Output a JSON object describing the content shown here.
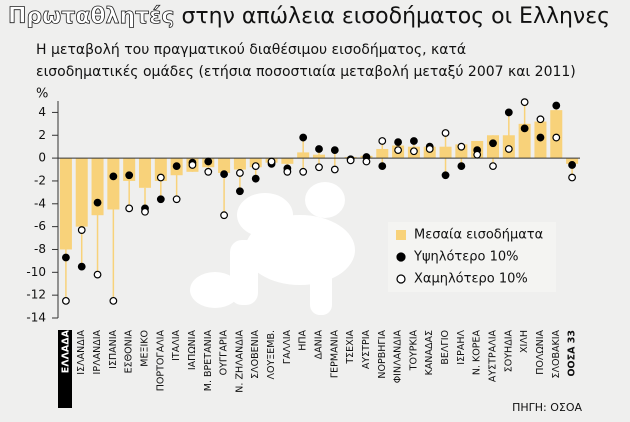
{
  "chart_data": {
    "type": "bar-dot",
    "title_highlight": "Πρωταθλητές",
    "title": "στην απώλεια εισοδήματος οι Ελληνες",
    "subtitle": [
      "Η μεταβολή του πραγματικού διαθέσιμου εισοδήματος, κατά",
      "εισοδηματικές ομάδες (ετήσια ποσοστιαία μεταβολή μεταξύ 2007 και 2011)"
    ],
    "y_unit": "%",
    "source": "ΠΗΓΗ: ΟΣΟΑ",
    "categories": [
      "ΕΛΛΑΔΑ",
      "ΙΣΛΑΝΔΙΑ",
      "ΙΡΛΑΝΔΙΑ",
      "ΙΣΠΑΝΙΑ",
      "ΕΣΘΟΝΙΑ",
      "ΜΕΞΙΚΟ",
      "ΠΟΡΤΟΓΑΛΙΑ",
      "ΙΤΑΛΙΑ",
      "ΙΑΠΩΝΙΑ",
      "Μ. ΒΡΕΤΑΝΙΑ",
      "ΟΥΓΓΑΡΙΑ",
      "Ν. ΖΗΛΑΝΔΙΑ",
      "ΣΛΟΒΕΝΙΑ",
      "ΛΟΥΞΕΜΒ.",
      "ΓΑΛΛΙΑ",
      "ΗΠΑ",
      "ΔΑΝΙΑ",
      "ΓΕΡΜΑΝΙΑ",
      "ΤΣΕΧΙΑ",
      "ΑΥΣΤΡΙΑ",
      "ΝΟΡΒΗΓΙΑ",
      "ΦΙΝΛΑΝΔΙΑ",
      "ΤΟΥΡΚΙΑ",
      "ΚΑΝΑΔΑΣ",
      "ΒΕΛΓΙΟ",
      "ΙΣΡΑΗΛ",
      "Ν. ΚΟΡΕΑ",
      "ΑΥΣΤΡΑΛΙΑ",
      "ΣΟΥΗΔΙΑ",
      "ΧΙΛΗ",
      "ΠΟΛΩΝΙΑ",
      "ΣΛΟΒΑΚΙΑ",
      "ΟΟΣΑ 33"
    ],
    "series": [
      {
        "name": "Μεσαία εισοδήματα",
        "color": "#f8d27a",
        "marker": "bar",
        "values": [
          -8,
          -6,
          -5,
          -4.5,
          -2,
          -2.6,
          -2,
          -1.5,
          -1.2,
          -0.8,
          -1.3,
          -1,
          -0.8,
          -0.4,
          -0.5,
          0.5,
          0.3,
          0,
          0.1,
          0.2,
          0.8,
          1.1,
          1,
          1,
          1,
          1.2,
          1.5,
          2,
          2,
          3,
          3.2,
          4.2,
          -0.5
        ]
      },
      {
        "name": "Υψηλότερο 10%",
        "color": "#000000",
        "marker": "filled",
        "values": [
          -8.7,
          -9.5,
          -3.9,
          -1.6,
          -1.5,
          -4.4,
          -3.6,
          -0.7,
          -0.4,
          -0.3,
          -1.4,
          -2.9,
          -1.8,
          -0.5,
          -0.9,
          1.8,
          0.8,
          0.7,
          -0.1,
          0.1,
          -0.7,
          1.4,
          1.5,
          1,
          -1.5,
          -0.7,
          0.7,
          1.3,
          4,
          2.6,
          1.8,
          4.6,
          -0.6
        ]
      },
      {
        "name": "Χαμηλότερο 10%",
        "color": "#000000",
        "marker": "open",
        "values": [
          -12.5,
          -6.3,
          -10.2,
          -12.5,
          -4.4,
          -4.7,
          -1.7,
          -3.6,
          -0.6,
          -1.2,
          -5,
          -1.3,
          -0.7,
          -0.3,
          -1.2,
          -1.2,
          -0.8,
          -1,
          -0.2,
          -0.3,
          1.5,
          0.7,
          0.6,
          0.8,
          2.2,
          1,
          0.3,
          -0.7,
          0.8,
          4.9,
          3.4,
          1.8,
          -1.7
        ]
      }
    ],
    "ylim": [
      -14,
      5
    ],
    "yticks": [
      4,
      2,
      0,
      -2,
      -4,
      -6,
      -8,
      -10,
      -12,
      -14
    ],
    "grid": false,
    "legend": "right"
  }
}
